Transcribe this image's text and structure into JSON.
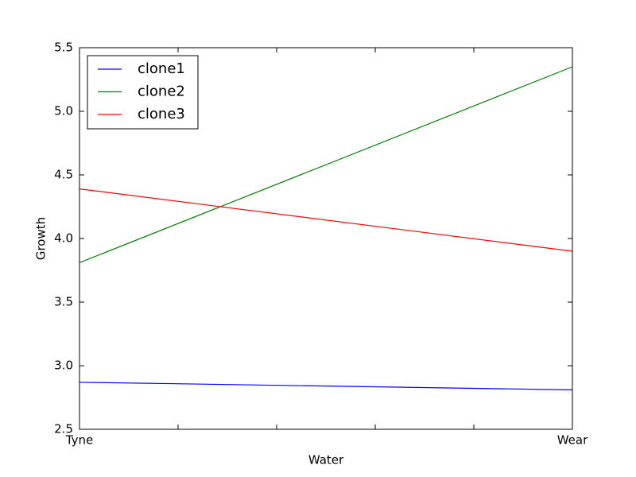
{
  "chart_data": {
    "type": "line",
    "xlabel": "Water",
    "ylabel": "Growth",
    "categories": [
      "Tyne",
      "Wear"
    ],
    "series": [
      {
        "name": "clone1",
        "color": "#0000ff",
        "values": [
          2.87,
          2.81
        ]
      },
      {
        "name": "clone2",
        "color": "#008000",
        "values": [
          3.81,
          5.35
        ]
      },
      {
        "name": "clone3",
        "color": "#ff0000",
        "values": [
          4.39,
          3.9
        ]
      }
    ],
    "ylim": [
      2.5,
      5.5
    ],
    "yticks": [
      2.5,
      {
        "value": 3,
        "label": "3.0"
      },
      3.5,
      {
        "value": 4,
        "label": "4.0"
      },
      4.5,
      {
        "value": 5,
        "label": "5.0"
      },
      5.5
    ],
    "legend": "upper left"
  }
}
